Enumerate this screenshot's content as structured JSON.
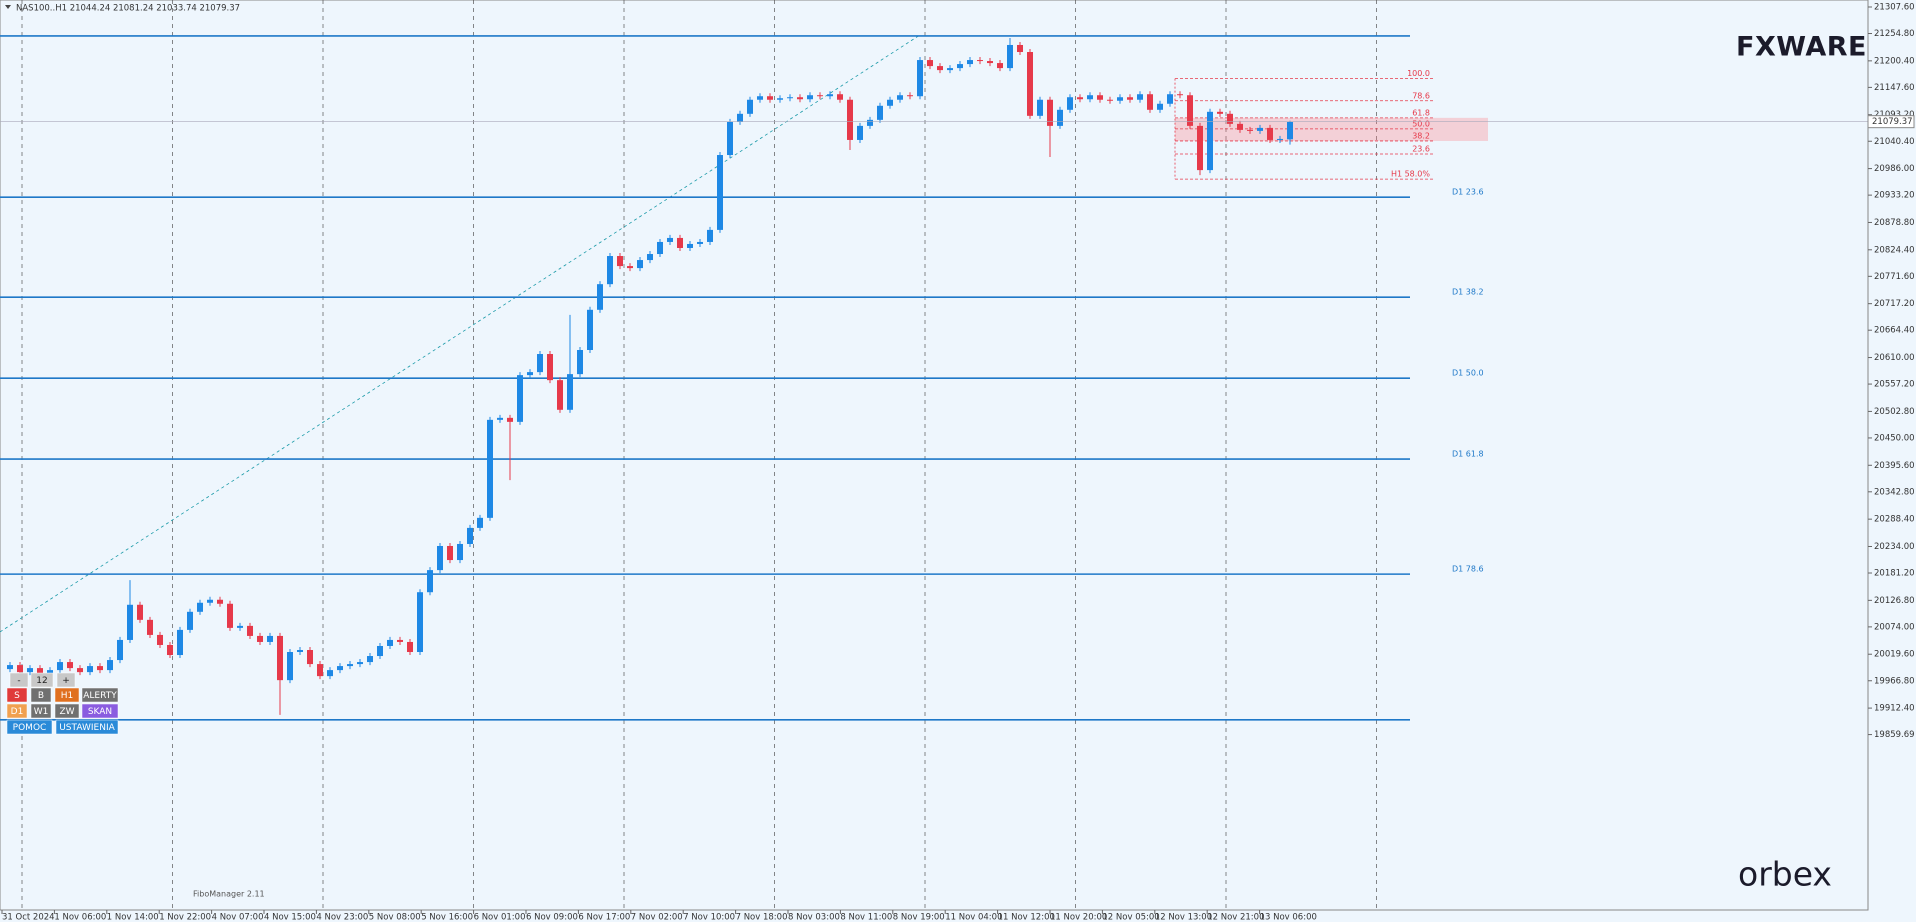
{
  "chart_data": {
    "type": "candlestick",
    "header": "NAS100..H1 21044.24 21081.24 21033.74 21079.37",
    "up_color": "#1e88e5",
    "down_color": "#e6394a",
    "open": [
      19990,
      19998,
      19984,
      19992,
      19976,
      19988,
      20004,
      19992,
      19984,
      19996,
      19988,
      20008,
      20048,
      20118,
      20088,
      20058,
      20038,
      20018,
      20068,
      20104,
      20122,
      20128,
      20120,
      20072,
      20076,
      20056,
      20044,
      20056,
      19968,
      20024,
      20028,
      20000,
      19976,
      19988,
      19996,
      20000,
      20004,
      20016,
      20036,
      20048,
      20044,
      20024,
      20143,
      20187,
      20235,
      20207,
      20239,
      20271,
      20291,
      20486,
      20490,
      20482,
      20575,
      20581,
      20617,
      20565,
      20506,
      20577,
      20625,
      20705,
      20756,
      20812,
      20792,
      20788,
      20804,
      20816,
      20840,
      20848,
      20828,
      20836,
      20840,
      20864,
      21013,
      21079,
      21095,
      21123,
      21130,
      21123,
      21126,
      21128,
      21124,
      21132,
      21130,
      21134,
      21123,
      21043,
      21071,
      21083,
      21111,
      21123,
      21132,
      21130,
      21202,
      21190,
      21182,
      21186,
      21194,
      21202,
      21200,
      21196,
      21186,
      21232,
      21218,
      21091,
      21123,
      21071,
      21103,
      21128,
      21124,
      21132,
      21123,
      21121,
      21128,
      21123,
      21134,
      21103,
      21115,
      21134,
      21132,
      21071,
      20983,
      21099,
      21095,
      21075,
      21063,
      21061,
      21067,
      21043,
      21044.24
    ],
    "high": [
      20004,
      20004,
      19998,
      19998,
      19994,
      20010,
      20010,
      19998,
      20002,
      20002,
      20014,
      20054,
      20167,
      20124,
      20094,
      20064,
      20044,
      20074,
      20110,
      20128,
      20134,
      20134,
      20126,
      20082,
      20082,
      20062,
      20062,
      20062,
      20030,
      20034,
      20034,
      20006,
      19994,
      20002,
      20006,
      20010,
      20022,
      20042,
      20054,
      20054,
      20050,
      20149,
      20193,
      20241,
      20241,
      20245,
      20277,
      20297,
      20492,
      20496,
      20496,
      20581,
      20587,
      20623,
      20623,
      20571,
      20695,
      20631,
      20711,
      20762,
      20818,
      20818,
      20798,
      20810,
      20822,
      20846,
      20854,
      20854,
      20842,
      20846,
      20870,
      21019,
      21085,
      21101,
      21129,
      21136,
      21136,
      21132,
      21134,
      21134,
      21138,
      21138,
      21140,
      21140,
      21129,
      21077,
      21089,
      21117,
      21129,
      21138,
      21138,
      21208,
      21208,
      21196,
      21192,
      21200,
      21208,
      21208,
      21206,
      21202,
      21246,
      21238,
      21224,
      21129,
      21129,
      21109,
      21134,
      21134,
      21138,
      21138,
      21129,
      21134,
      21134,
      21140,
      21140,
      21121,
      21140,
      21140,
      21138,
      21077,
      21105,
      21105,
      21101,
      21081,
      21069,
      21073,
      21073,
      21051,
      21081.24
    ],
    "low": [
      19984,
      19978,
      19978,
      19970,
      19970,
      19982,
      19986,
      19978,
      19978,
      19982,
      19982,
      20002,
      20042,
      20082,
      20052,
      20032,
      20012,
      20012,
      20062,
      20098,
      20116,
      20114,
      20066,
      20066,
      20050,
      20038,
      20038,
      19899,
      19962,
      20018,
      19994,
      19970,
      19970,
      19982,
      19990,
      19994,
      19998,
      20010,
      20030,
      20038,
      20018,
      20018,
      20137,
      20181,
      20201,
      20201,
      20233,
      20265,
      20285,
      20480,
      20366,
      20476,
      20569,
      20575,
      20559,
      20500,
      20500,
      20571,
      20619,
      20699,
      20750,
      20786,
      20782,
      20782,
      20798,
      20810,
      20834,
      20822,
      20822,
      20830,
      20834,
      20858,
      21007,
      21073,
      21089,
      21117,
      21117,
      21117,
      21120,
      21118,
      21118,
      21124,
      21124,
      21117,
      21023,
      21037,
      21065,
      21077,
      21105,
      21117,
      21124,
      21124,
      21184,
      21176,
      21176,
      21180,
      21188,
      21194,
      21190,
      21180,
      21180,
      21212,
      21085,
      21085,
      21009,
      21065,
      21097,
      21118,
      21118,
      21117,
      21115,
      21115,
      21117,
      21117,
      21097,
      21097,
      21109,
      21126,
      21065,
      20973,
      20977,
      21089,
      21069,
      21057,
      21055,
      21055,
      21037,
      21037,
      21033.74
    ],
    "close": [
      19998,
      19984,
      19992,
      19976,
      19988,
      20004,
      19992,
      19984,
      19996,
      19988,
      20008,
      20048,
      20118,
      20088,
      20058,
      20038,
      20018,
      20068,
      20104,
      20122,
      20128,
      20120,
      20072,
      20076,
      20056,
      20044,
      20056,
      19968,
      20024,
      20028,
      20000,
      19976,
      19988,
      19996,
      20000,
      20004,
      20016,
      20036,
      20048,
      20044,
      20024,
      20143,
      20187,
      20235,
      20207,
      20239,
      20271,
      20291,
      20486,
      20490,
      20482,
      20575,
      20581,
      20617,
      20565,
      20506,
      20577,
      20625,
      20705,
      20756,
      20812,
      20792,
      20788,
      20804,
      20816,
      20840,
      20848,
      20828,
      20836,
      20840,
      20864,
      21013,
      21079,
      21095,
      21123,
      21130,
      21123,
      21126,
      21128,
      21124,
      21132,
      21130,
      21134,
      21123,
      21043,
      21071,
      21083,
      21111,
      21123,
      21132,
      21130,
      21202,
      21190,
      21182,
      21186,
      21194,
      21202,
      21200,
      21196,
      21186,
      21232,
      21218,
      21091,
      21123,
      21071,
      21103,
      21128,
      21124,
      21132,
      21123,
      21121,
      21128,
      21123,
      21134,
      21103,
      21115,
      21134,
      21132,
      21071,
      20983,
      21099,
      21095,
      21075,
      21063,
      21061,
      21067,
      21043,
      21045,
      21079.37
    ],
    "x_labels": [
      "31 Oct 2024",
      "1 Nov 06:00",
      "1 Nov 14:00",
      "1 Nov 22:00",
      "4 Nov 07:00",
      "4 Nov 15:00",
      "4 Nov 23:00",
      "5 Nov 08:00",
      "5 Nov 16:00",
      "6 Nov 01:00",
      "6 Nov 09:00",
      "6 Nov 17:00",
      "7 Nov 02:00",
      "7 Nov 10:00",
      "7 Nov 18:00",
      "8 Nov 03:00",
      "8 Nov 11:00",
      "8 Nov 19:00",
      "11 Nov 04:00",
      "11 Nov 12:00",
      "11 Nov 20:00",
      "12 Nov 05:00",
      "12 Nov 13:00",
      "12 Nov 21:00",
      "13 Nov 06:00"
    ],
    "ylim": [
      19510.6,
      21321.5
    ],
    "yticks": [
      {
        "value": 21307.6,
        "label": "21307.60"
      },
      {
        "value": 21254.8,
        "label": "21254.80"
      },
      {
        "value": 21200.4,
        "label": "21200.40"
      },
      {
        "value": 21147.6,
        "label": "21147.60"
      },
      {
        "value": 21093.2,
        "label": "21093.20"
      },
      {
        "value": 21040.4,
        "label": "21040.40"
      },
      {
        "value": 20986,
        "label": "20986.00"
      },
      {
        "value": 20933.2,
        "label": "20933.20"
      },
      {
        "value": 20878.8,
        "label": "20878.80"
      },
      {
        "value": 20824.4,
        "label": "20824.40"
      },
      {
        "value": 20771.6,
        "label": "20771.60"
      },
      {
        "value": 20717.2,
        "label": "20717.20"
      },
      {
        "value": 20664.4,
        "label": "20664.40"
      },
      {
        "value": 20610,
        "label": "20610.00"
      },
      {
        "value": 20557.2,
        "label": "20557.20"
      },
      {
        "value": 20502.8,
        "label": "20502.80"
      },
      {
        "value": 20450,
        "label": "20450.00"
      },
      {
        "value": 20395.6,
        "label": "20395.60"
      },
      {
        "value": 20342.8,
        "label": "20342.80"
      },
      {
        "value": 20288.4,
        "label": "20288.40"
      },
      {
        "value": 20234,
        "label": "20234.00"
      },
      {
        "value": 20181.2,
        "label": "20181.20"
      },
      {
        "value": 20126.8,
        "label": "20126.80"
      },
      {
        "value": 20074,
        "label": "20074.00"
      },
      {
        "value": 20019.6,
        "label": "20019.60"
      },
      {
        "value": 19966.8,
        "label": "19966.80"
      },
      {
        "value": 19912.4,
        "label": "19912.40"
      },
      19859.69
    ],
    "levels": [
      21250,
      20929,
      20730,
      20569,
      20408,
      20179,
      19889
    ],
    "level_labels": [
      null,
      "D1 23.6",
      "D1 38.2",
      "D1 50.0",
      "D1 61.8",
      "D1 78.6",
      null
    ],
    "fibo_lines": [
      21165,
      21121,
      21087,
      21065,
      21041,
      21015,
      20965
    ],
    "fibo_labels": [
      "100.0",
      "78.6",
      "61.8",
      "50.0",
      "38.2",
      "23.6",
      "H1 58.0%"
    ],
    "zone": [
      21041,
      21087
    ],
    "trendline": {
      "x": [
        -1,
        91
      ],
      "y": [
        20064,
        21252
      ]
    }
  },
  "ui": {
    "logo_top": "FXWARE",
    "logo_bottom": "orbex",
    "indicator": "FiboManager 2.11",
    "buttons": [
      "-",
      "12",
      "+",
      "S",
      "B",
      "H1",
      "ALERTY",
      "D1",
      "W1",
      "ZW",
      "SKAN",
      "POMOC",
      "USTAWIENIA"
    ]
  }
}
